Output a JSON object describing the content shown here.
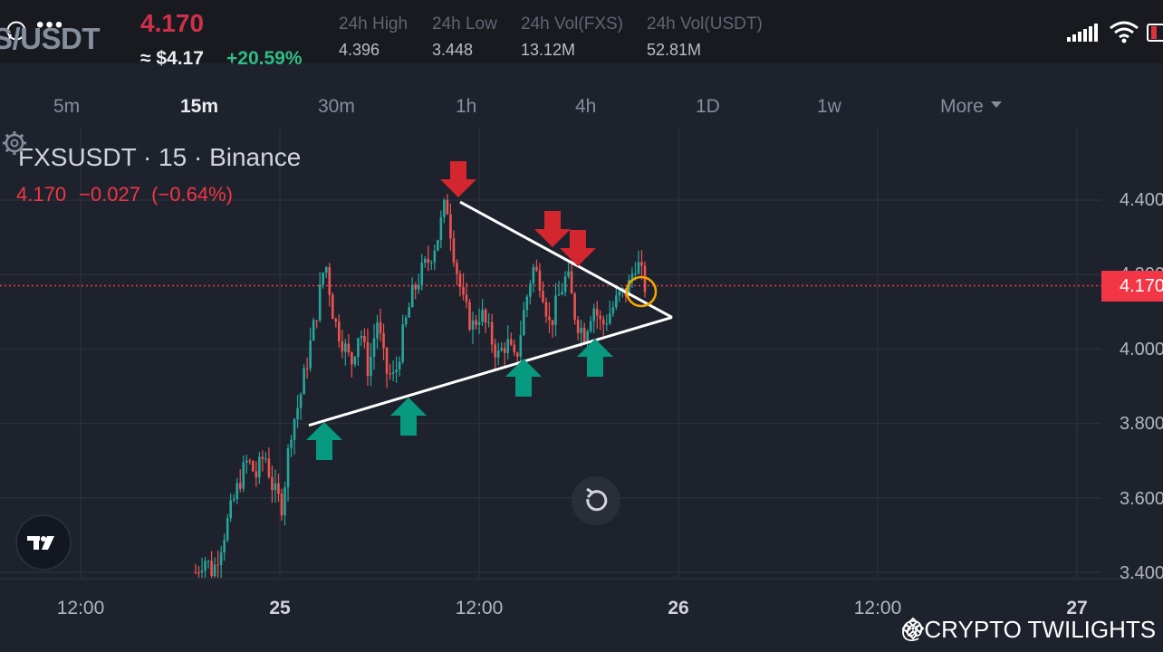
{
  "header": {
    "pair": "S/USDT",
    "last_price": "4.170",
    "approx_usd": "≈ $4.17",
    "change_pct": "+20.59%",
    "stats": [
      {
        "label": "24h High",
        "value": "4.396"
      },
      {
        "label": "24h Low",
        "value": "3.448"
      },
      {
        "label": "24h Vol(FXS)",
        "value": "13.12M"
      },
      {
        "label": "24h Vol(USDT)",
        "value": "52.81M"
      }
    ]
  },
  "intervals": [
    "5m",
    "15m",
    "30m",
    "1h",
    "4h",
    "1D",
    "1w",
    "More"
  ],
  "active_interval": "15m",
  "chart": {
    "symbol_line": "FXSUSDT · 15 · Binance",
    "ohlc": {
      "price": "4.170",
      "change": "−0.027",
      "change_pct": "(−0.64%)"
    },
    "price_axis": [
      "4.400",
      "4.200",
      "4.000",
      "3.800",
      "3.600",
      "3.400"
    ],
    "current_price_tag": "4.170",
    "time_axis": [
      {
        "label": "12:00",
        "bold": false
      },
      {
        "label": "25",
        "bold": true
      },
      {
        "label": "12:00",
        "bold": false
      },
      {
        "label": "26",
        "bold": true
      },
      {
        "label": "12:00",
        "bold": false
      },
      {
        "label": "27",
        "bold": true
      }
    ],
    "watermark": "@CRYPTO TWILIGHTS",
    "colors": {
      "up": "#26a69a",
      "down": "#ef5350",
      "arrow_up": "#089981",
      "arrow_down": "#d3262f",
      "trendline": "#ffffff",
      "marker": "#f7a600"
    }
  },
  "chart_data": {
    "type": "candlestick",
    "title": "FXSUSDT · 15 · Binance",
    "ylim": [
      3.38,
      4.5
    ],
    "x_ticks": [
      "12:00",
      "25",
      "12:00",
      "26",
      "12:00",
      "27"
    ],
    "close_path": [
      3.4,
      3.44,
      3.4,
      3.48,
      3.56,
      3.64,
      3.7,
      3.66,
      3.72,
      3.62,
      3.58,
      3.78,
      3.86,
      3.98,
      4.1,
      4.24,
      4.08,
      4.02,
      3.96,
      4.06,
      3.94,
      4.08,
      3.94,
      3.92,
      4.04,
      4.14,
      4.2,
      4.24,
      4.3,
      4.4,
      4.24,
      4.12,
      4.06,
      4.1,
      4.04,
      3.98,
      4.02,
      3.96,
      4.1,
      4.22,
      4.18,
      4.06,
      4.14,
      4.2,
      4.08,
      4.04,
      4.12,
      4.06,
      4.1,
      4.14,
      4.16,
      4.24,
      4.17
    ],
    "annotations": {
      "trendline_upper": {
        "from": 4.4,
        "to": 4.1
      },
      "trendline_lower": {
        "from": 3.8,
        "to": 4.1
      },
      "down_arrows": 3,
      "up_arrows": 4
    }
  }
}
